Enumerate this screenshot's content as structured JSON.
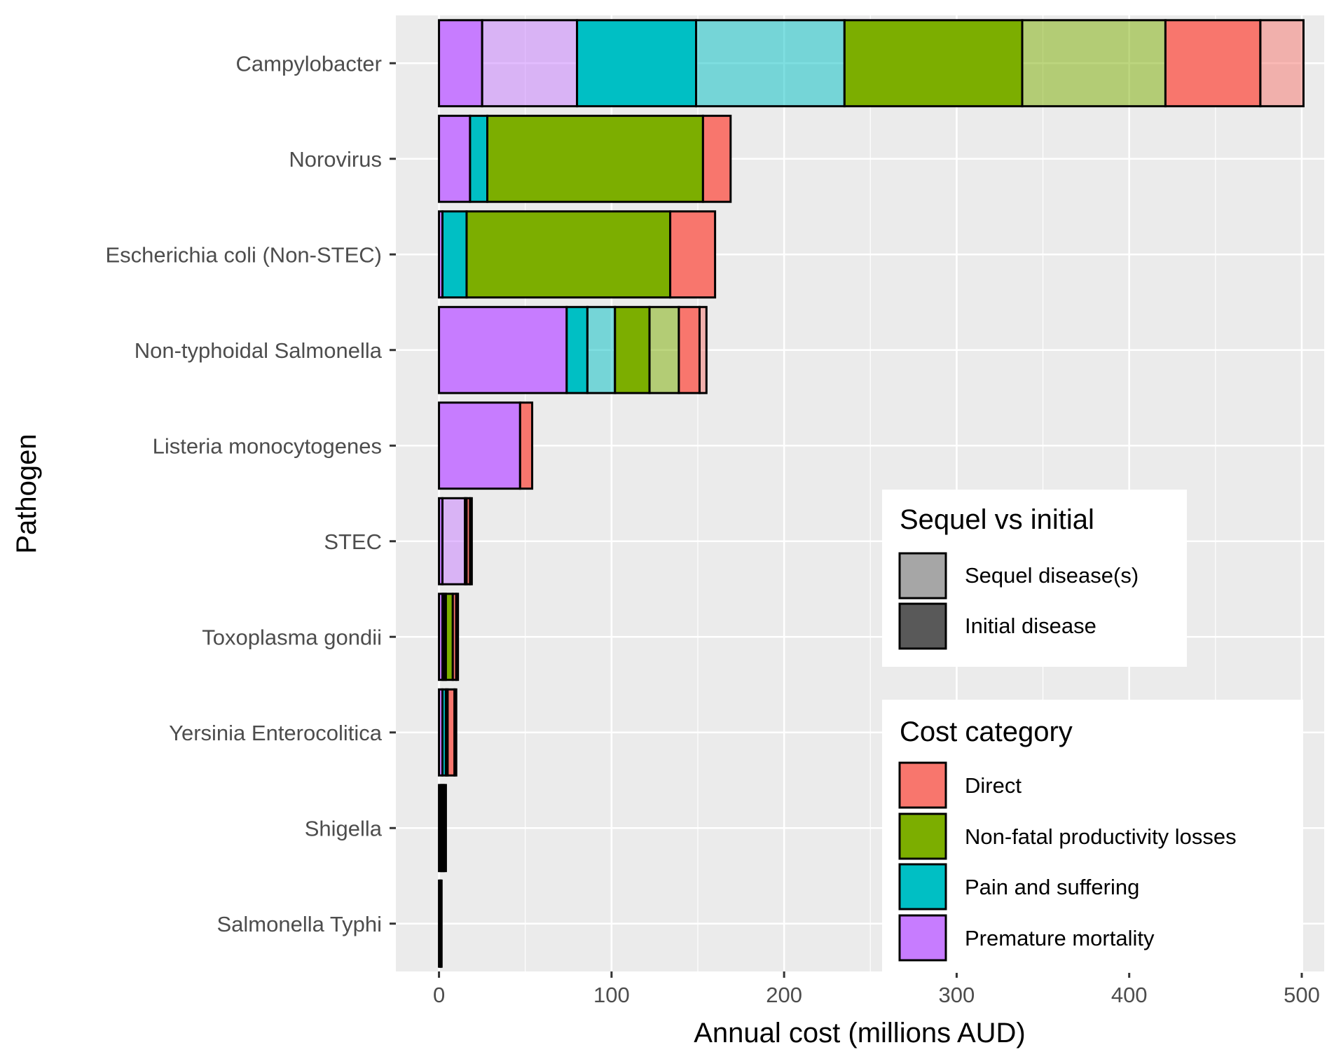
{
  "chart_data": {
    "type": "bar",
    "orientation": "horizontal",
    "stacked": true,
    "xlabel": "Annual cost (millions AUD)",
    "ylabel": "Pathogen",
    "xlim": [
      -25,
      513
    ],
    "xticks": [
      0,
      100,
      200,
      300,
      400,
      500
    ],
    "grid": true,
    "categories": [
      "Campylobacter",
      "Norovirus",
      "Escherichia coli (Non-STEC)",
      "Non-typhoidal Salmonella",
      "Listeria monocytogenes",
      "STEC",
      "Toxoplasma gondii",
      "Yersinia Enterocolitica",
      "Shigella",
      "Salmonella Typhi"
    ],
    "segment_order": [
      {
        "category": "Premature mortality",
        "disease": "Initial disease"
      },
      {
        "category": "Premature mortality",
        "disease": "Sequel disease(s)"
      },
      {
        "category": "Pain and suffering",
        "disease": "Initial disease"
      },
      {
        "category": "Pain and suffering",
        "disease": "Sequel disease(s)"
      },
      {
        "category": "Non-fatal productivity losses",
        "disease": "Initial disease"
      },
      {
        "category": "Non-fatal productivity losses",
        "disease": "Sequel disease(s)"
      },
      {
        "category": "Direct",
        "disease": "Initial disease"
      },
      {
        "category": "Direct",
        "disease": "Sequel disease(s)"
      }
    ],
    "values": [
      [
        25,
        55,
        69,
        86,
        103,
        83,
        55,
        25
      ],
      [
        18,
        0,
        10,
        0,
        125,
        0,
        16,
        0
      ],
      [
        2,
        0,
        14,
        0,
        118,
        0,
        26,
        0
      ],
      [
        74,
        0,
        12,
        16,
        20,
        17,
        12,
        4
      ],
      [
        47,
        0,
        0,
        0,
        0,
        0,
        7,
        0
      ],
      [
        2,
        13,
        1,
        0,
        0,
        0,
        2,
        1
      ],
      [
        2,
        1,
        1,
        0,
        4,
        0,
        2,
        1
      ],
      [
        2,
        0,
        2,
        0,
        1,
        0,
        4,
        1
      ],
      [
        1,
        0,
        1,
        0,
        1,
        0,
        1,
        0
      ],
      [
        0.5,
        0,
        0.3,
        0,
        0.4,
        0,
        0.3,
        0
      ]
    ],
    "legend_cost_category": {
      "title": "Cost category",
      "entries": [
        {
          "label": "Direct",
          "color": "#F8766D"
        },
        {
          "label": "Non-fatal productivity losses",
          "color": "#7CAE00"
        },
        {
          "label": "Pain and suffering",
          "color": "#00BFC4"
        },
        {
          "label": "Premature mortality",
          "color": "#C77CFF"
        }
      ]
    },
    "legend_sequel": {
      "title": "Sequel vs initial",
      "entries": [
        {
          "label": "Sequel disease(s)",
          "color": "#A6A6A6",
          "alpha": 0.5
        },
        {
          "label": "Initial disease",
          "color": "#595959",
          "alpha": 1.0
        }
      ]
    },
    "legend_position": "bottom-right inside"
  }
}
